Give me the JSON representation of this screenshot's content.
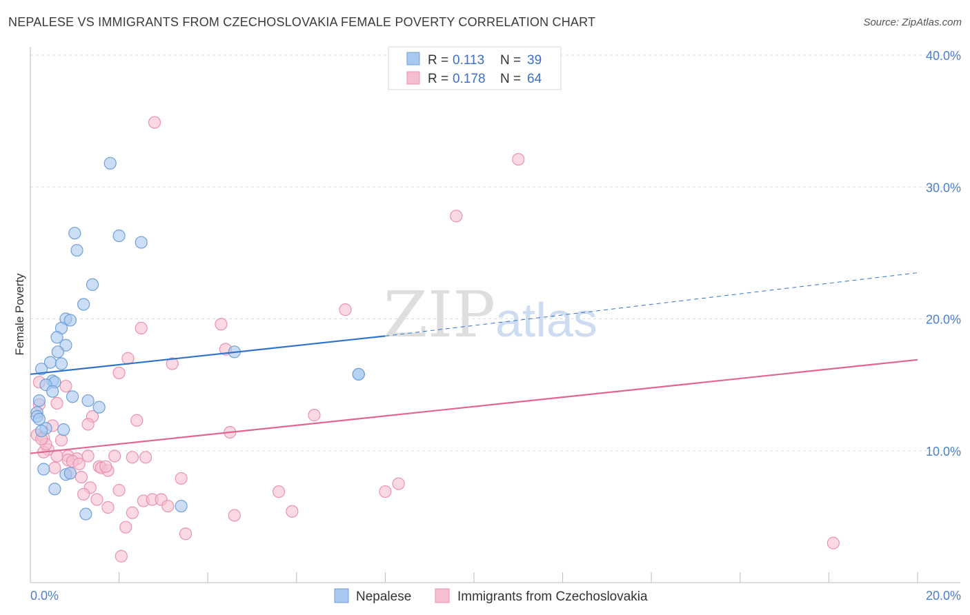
{
  "header": {
    "title": "NEPALESE VS IMMIGRANTS FROM CZECHOSLOVAKIA FEMALE POVERTY CORRELATION CHART",
    "source": "Source: ZipAtlas.com"
  },
  "watermark": {
    "zip": "ZIP",
    "atlas": "atlas"
  },
  "legend": {
    "rows": [
      {
        "r_label": "R =",
        "r_value": "0.113",
        "n_label": "N =",
        "n_value": "39"
      },
      {
        "r_label": "R =",
        "r_value": "0.178",
        "n_label": "N =",
        "n_value": "64"
      }
    ]
  },
  "bottom_legend": {
    "series1": "Nepalese",
    "series2": "Immigrants from Czechoslovakia"
  },
  "colors": {
    "nepalese_fill": "#a9c8ef",
    "nepalese_stroke": "#6f9fd8",
    "nepalese_line": "#2f72c9",
    "czech_fill": "#f6bfd0",
    "czech_stroke": "#e892ae",
    "czech_line": "#e06590",
    "tick_text": "#4a7fc9",
    "grid": "#dddddd"
  },
  "chart_data": {
    "type": "scatter",
    "title": "NEPALESE VS IMMIGRANTS FROM CZECHOSLOVAKIA FEMALE POVERTY CORRELATION CHART",
    "xlabel": "",
    "ylabel": "Female Poverty",
    "xlim": [
      0,
      20
    ],
    "ylim": [
      0,
      40
    ],
    "x_tick_labels": [
      "0.0%",
      "20.0%"
    ],
    "y_tick_labels": [
      "10.0%",
      "20.0%",
      "30.0%",
      "40.0%"
    ],
    "y_ticks": [
      10,
      20,
      30,
      40
    ],
    "series": [
      {
        "name": "Nepalese",
        "R": 0.113,
        "N": 39,
        "trend": {
          "x0": 0,
          "y0": 15.8,
          "x1": 8.0,
          "y1": 18.7,
          "dash_x1": 20,
          "dash_y1": 23.5
        },
        "points": [
          [
            1.8,
            31.8
          ],
          [
            1.0,
            26.5
          ],
          [
            2.0,
            26.3
          ],
          [
            2.5,
            25.8
          ],
          [
            1.05,
            25.2
          ],
          [
            1.4,
            22.6
          ],
          [
            1.2,
            21.1
          ],
          [
            0.8,
            20.0
          ],
          [
            0.9,
            19.9
          ],
          [
            0.7,
            19.3
          ],
          [
            0.6,
            18.6
          ],
          [
            0.8,
            18.0
          ],
          [
            0.62,
            17.5
          ],
          [
            4.6,
            17.5
          ],
          [
            0.45,
            16.7
          ],
          [
            0.7,
            16.6
          ],
          [
            0.25,
            16.2
          ],
          [
            7.4,
            15.8
          ],
          [
            7.4,
            15.8
          ],
          [
            0.5,
            15.3
          ],
          [
            0.55,
            15.2
          ],
          [
            0.35,
            15.0
          ],
          [
            0.5,
            14.5
          ],
          [
            0.95,
            14.1
          ],
          [
            0.2,
            13.8
          ],
          [
            1.3,
            13.8
          ],
          [
            1.55,
            13.3
          ],
          [
            0.15,
            12.9
          ],
          [
            0.15,
            12.6
          ],
          [
            0.35,
            11.7
          ],
          [
            0.75,
            11.6
          ],
          [
            0.25,
            11.5
          ],
          [
            0.3,
            8.6
          ],
          [
            0.8,
            8.2
          ],
          [
            0.9,
            8.3
          ],
          [
            0.55,
            7.1
          ],
          [
            1.25,
            5.2
          ],
          [
            3.4,
            5.8
          ],
          [
            0.2,
            12.4
          ]
        ]
      },
      {
        "name": "Immigrants from Czechoslovakia",
        "R": 0.178,
        "N": 64,
        "trend": {
          "x0": 0,
          "y0": 9.8,
          "x1": 20,
          "y1": 16.9
        },
        "points": [
          [
            2.8,
            34.9
          ],
          [
            11.0,
            32.1
          ],
          [
            9.6,
            27.8
          ],
          [
            7.1,
            20.7
          ],
          [
            4.3,
            19.6
          ],
          [
            2.5,
            19.3
          ],
          [
            4.4,
            17.7
          ],
          [
            2.2,
            17.0
          ],
          [
            3.2,
            16.6
          ],
          [
            2.0,
            15.9
          ],
          [
            0.2,
            15.2
          ],
          [
            0.8,
            14.9
          ],
          [
            0.6,
            13.6
          ],
          [
            1.4,
            12.6
          ],
          [
            6.4,
            12.7
          ],
          [
            2.4,
            12.3
          ],
          [
            1.3,
            12.0
          ],
          [
            0.5,
            11.9
          ],
          [
            4.5,
            11.4
          ],
          [
            0.15,
            11.2
          ],
          [
            0.3,
            11.0
          ],
          [
            0.7,
            10.8
          ],
          [
            0.4,
            10.1
          ],
          [
            0.3,
            9.9
          ],
          [
            0.85,
            9.6
          ],
          [
            1.3,
            9.6
          ],
          [
            1.05,
            9.4
          ],
          [
            1.9,
            9.6
          ],
          [
            2.3,
            9.5
          ],
          [
            2.6,
            9.5
          ],
          [
            0.85,
            9.3
          ],
          [
            0.95,
            9.2
          ],
          [
            1.1,
            9.0
          ],
          [
            0.55,
            8.7
          ],
          [
            1.55,
            8.8
          ],
          [
            1.6,
            8.7
          ],
          [
            1.75,
            8.5
          ],
          [
            0.9,
            8.3
          ],
          [
            1.15,
            8.0
          ],
          [
            3.4,
            7.9
          ],
          [
            8.3,
            7.5
          ],
          [
            1.35,
            7.2
          ],
          [
            2.0,
            7.0
          ],
          [
            5.6,
            6.9
          ],
          [
            8.0,
            6.9
          ],
          [
            1.2,
            6.7
          ],
          [
            1.5,
            6.3
          ],
          [
            2.55,
            6.2
          ],
          [
            2.75,
            6.3
          ],
          [
            2.95,
            6.3
          ],
          [
            1.75,
            5.7
          ],
          [
            3.1,
            5.8
          ],
          [
            2.3,
            5.3
          ],
          [
            4.6,
            5.1
          ],
          [
            5.9,
            5.4
          ],
          [
            2.15,
            4.2
          ],
          [
            3.5,
            3.7
          ],
          [
            2.05,
            2.0
          ],
          [
            18.1,
            3.0
          ],
          [
            0.35,
            10.5
          ],
          [
            1.7,
            8.8
          ],
          [
            0.2,
            13.5
          ],
          [
            0.25,
            10.9
          ],
          [
            0.6,
            9.6
          ]
        ]
      }
    ]
  }
}
